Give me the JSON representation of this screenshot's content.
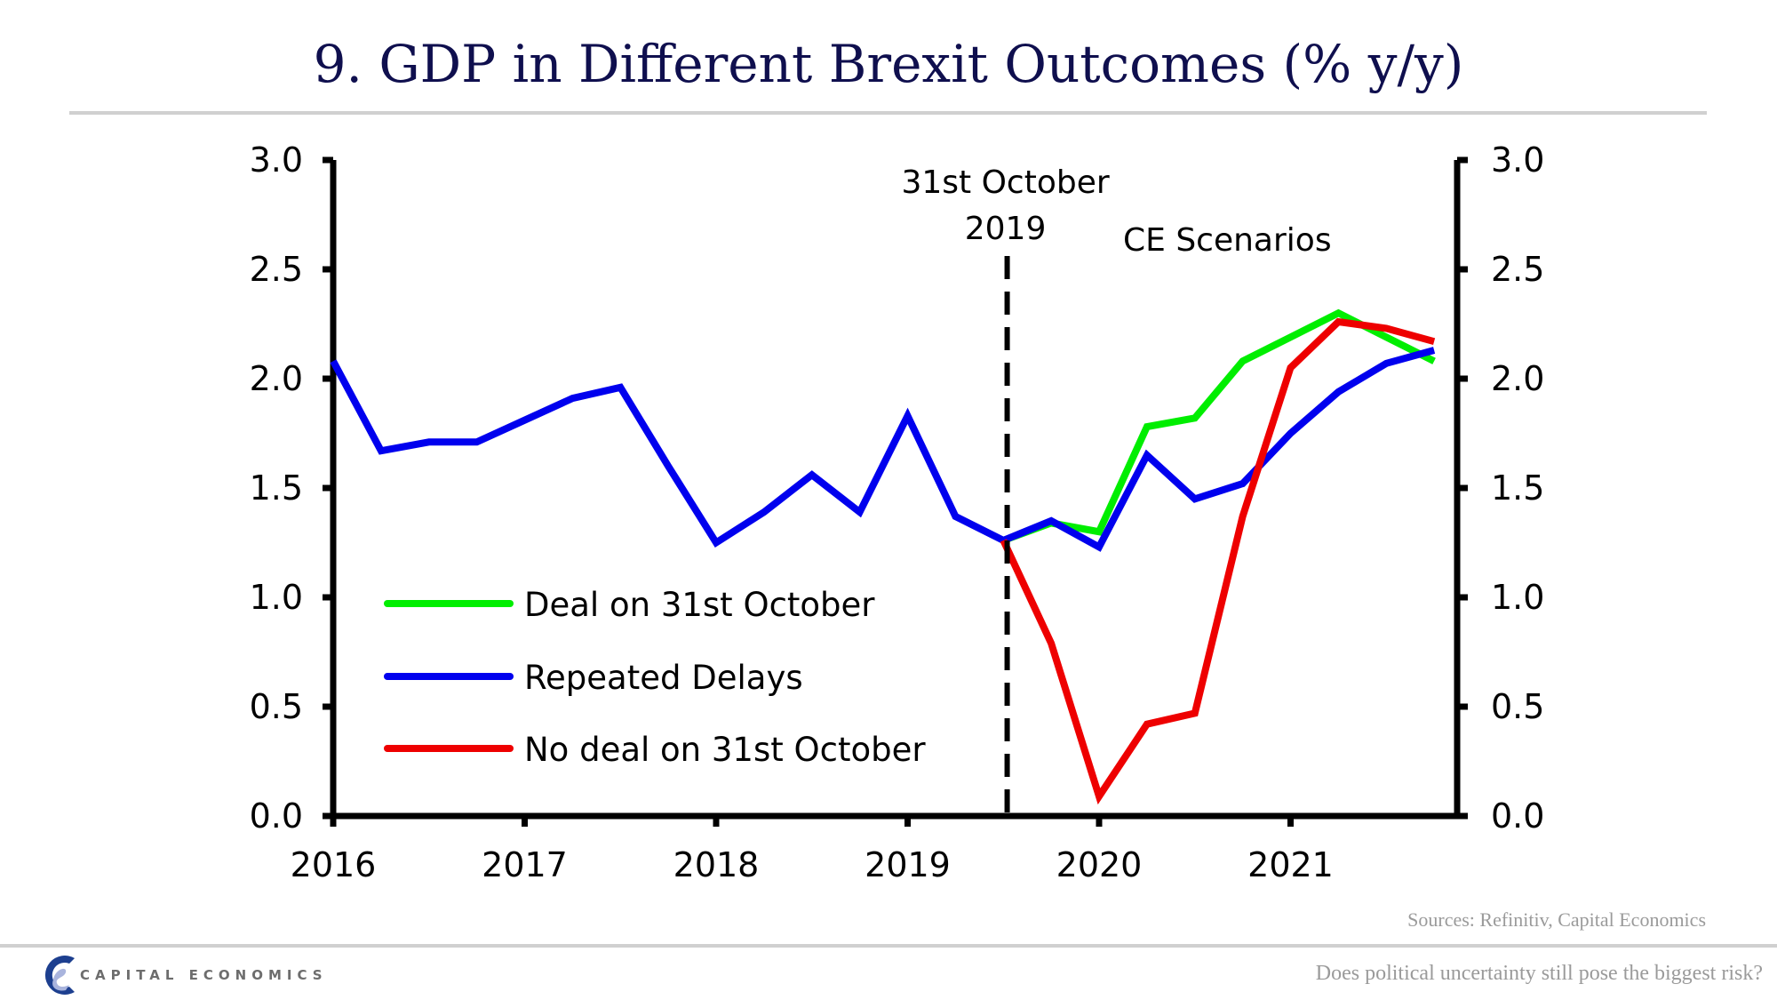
{
  "page": {
    "title": "9. GDP in Different Brexit Outcomes (% y/y)",
    "sources": "Sources: Refinitiv, Capital Economics",
    "footer_question": "Does political uncertainty still pose the biggest risk?",
    "brand": "CAPITAL ECONOMICS",
    "brand_colors": {
      "dark": "#1d3f8f",
      "light": "#a9b4dd"
    }
  },
  "chart_data": {
    "type": "line",
    "title": "9. GDP in Different Brexit Outcomes (% y/y)",
    "xlabel": "",
    "ylabel": "% y/y",
    "x_ticks": [
      "2016",
      "2017",
      "2018",
      "2019",
      "2020",
      "2021"
    ],
    "xlim": [
      2016,
      2021.88
    ],
    "ylim": [
      0,
      3
    ],
    "y_ticks": [
      "0.0",
      "0.5",
      "1.0",
      "1.5",
      "2.0",
      "2.5",
      "3.0"
    ],
    "y_tick_values": [
      0,
      0.5,
      1.0,
      1.5,
      2.0,
      2.5,
      3.0
    ],
    "right_axis_mirrors_left": true,
    "grid": false,
    "legend_position": "lower-left",
    "x": [
      "2016Q1",
      "2016Q2",
      "2016Q3",
      "2016Q4",
      "2017Q1",
      "2017Q2",
      "2017Q3",
      "2017Q4",
      "2018Q1",
      "2018Q2",
      "2018Q3",
      "2018Q4",
      "2019Q1",
      "2019Q2",
      "2019Q3",
      "2019Q4",
      "2020Q1",
      "2020Q2",
      "2020Q3",
      "2020Q4",
      "2021Q1",
      "2021Q2",
      "2021Q3",
      "2021Q4"
    ],
    "x_numeric": [
      2016.0,
      2016.25,
      2016.5,
      2016.75,
      2017.0,
      2017.25,
      2017.5,
      2017.75,
      2018.0,
      2018.25,
      2018.5,
      2018.75,
      2019.0,
      2019.25,
      2019.5,
      2019.75,
      2020.0,
      2020.25,
      2020.5,
      2020.75,
      2021.0,
      2021.25,
      2021.5,
      2021.75
    ],
    "series": [
      {
        "name": "Deal on 31st October",
        "color": "#00ee00",
        "values": [
          null,
          null,
          null,
          null,
          null,
          null,
          null,
          null,
          null,
          null,
          null,
          null,
          null,
          null,
          1.26,
          1.34,
          1.3,
          1.78,
          1.82,
          2.08,
          2.19,
          2.3,
          2.19,
          2.08
        ]
      },
      {
        "name": "Repeated Delays",
        "color": "#0000ee",
        "values": [
          2.08,
          1.67,
          1.71,
          1.71,
          1.81,
          1.91,
          1.96,
          1.6,
          1.25,
          1.39,
          1.56,
          1.39,
          1.83,
          1.37,
          1.26,
          1.35,
          1.23,
          1.65,
          1.45,
          1.52,
          1.75,
          1.94,
          2.07,
          2.13
        ]
      },
      {
        "name": "No deal on 31st October",
        "color": "#ee0000",
        "values": [
          null,
          null,
          null,
          null,
          null,
          null,
          null,
          null,
          null,
          null,
          null,
          null,
          null,
          null,
          1.26,
          0.79,
          0.09,
          0.42,
          0.47,
          1.37,
          2.05,
          2.26,
          2.23,
          2.17
        ]
      }
    ],
    "annotations": [
      {
        "type": "vline",
        "x": 2019.52,
        "style": "dashed",
        "label_lines": [
          "31st October",
          "2019"
        ]
      },
      {
        "type": "text",
        "text": "CE Scenarios"
      }
    ]
  }
}
